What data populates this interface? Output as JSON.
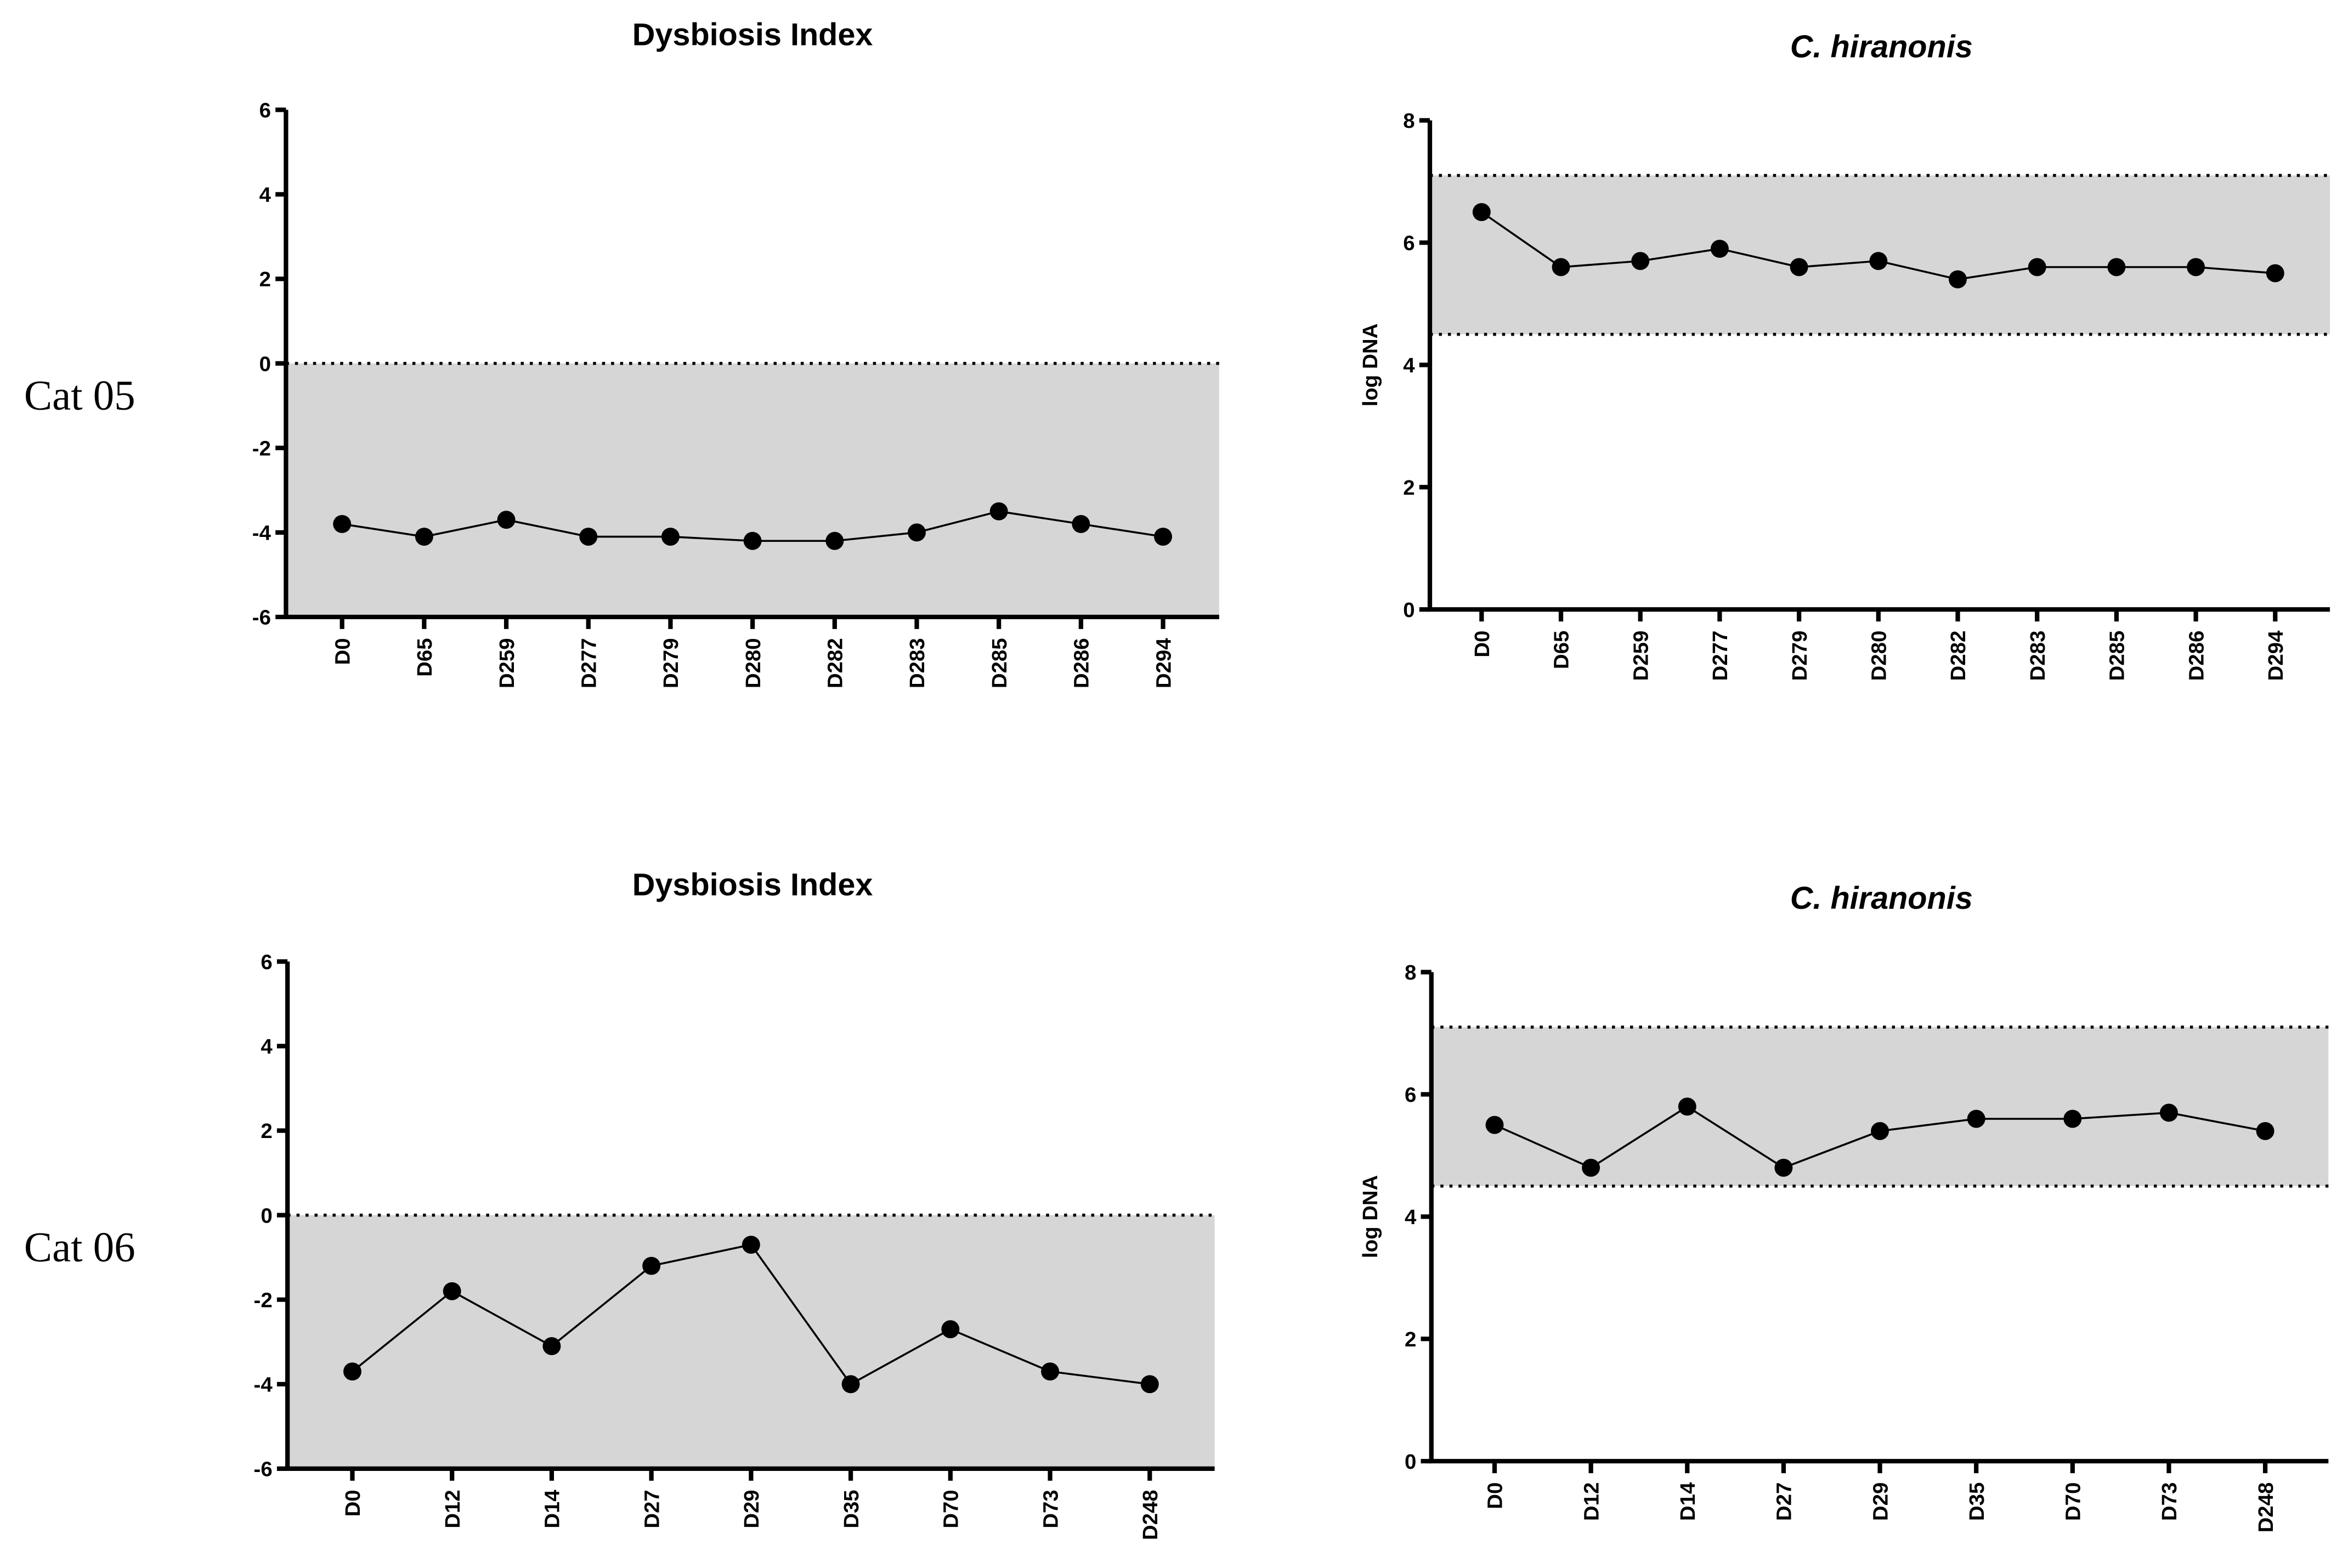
{
  "row_labels": [
    "Cat 05",
    "Cat 06"
  ],
  "chart_data": [
    {
      "type": "line",
      "title": "Dysbiosis Index",
      "title_style": "normal",
      "categories": [
        "D0",
        "D65",
        "D259",
        "D277",
        "D279",
        "D280",
        "D282",
        "D283",
        "D285",
        "D286",
        "D294"
      ],
      "values": [
        -3.8,
        -4.1,
        -3.7,
        -4.1,
        -4.1,
        -4.2,
        -4.2,
        -4.0,
        -3.5,
        -3.8,
        -4.1
      ],
      "color": "#000000",
      "band": [
        -6,
        0
      ],
      "band_color": "#d6d6d6",
      "ylim": [
        -6,
        6
      ],
      "yticks": [
        -6,
        -4,
        -2,
        0,
        2,
        4,
        6
      ]
    },
    {
      "type": "line",
      "title": "C. hiranonis",
      "title_style": "italic",
      "ylabel": "log DNA",
      "categories": [
        "D0",
        "D65",
        "D259",
        "D277",
        "D279",
        "D280",
        "D282",
        "D283",
        "D285",
        "D286",
        "D294"
      ],
      "values": [
        6.5,
        5.6,
        5.7,
        5.9,
        5.6,
        5.7,
        5.4,
        5.6,
        5.6,
        5.6,
        5.5
      ],
      "color": "#000000",
      "band": [
        4.5,
        7.1
      ],
      "band_color": "#d6d6d6",
      "ylim": [
        0,
        8
      ],
      "yticks": [
        0,
        2,
        4,
        6,
        8
      ]
    },
    {
      "type": "line",
      "title": "Dysbiosis Index",
      "title_style": "normal",
      "categories": [
        "D0",
        "D12",
        "D14",
        "D27",
        "D29",
        "D35",
        "D70",
        "D73",
        "D248"
      ],
      "values": [
        -3.7,
        -1.8,
        -3.1,
        -1.2,
        -0.7,
        -4.0,
        -2.7,
        -3.7,
        -4.0
      ],
      "color": "#000000",
      "band": [
        -6,
        0
      ],
      "band_color": "#d6d6d6",
      "ylim": [
        -6,
        6
      ],
      "yticks": [
        -6,
        -4,
        -2,
        0,
        2,
        4,
        6
      ]
    },
    {
      "type": "line",
      "title": "C. hiranonis",
      "title_style": "italic",
      "ylabel": "log DNA",
      "categories": [
        "D0",
        "D12",
        "D14",
        "D27",
        "D29",
        "D35",
        "D70",
        "D73",
        "D248"
      ],
      "values": [
        5.5,
        4.8,
        5.8,
        4.8,
        5.4,
        5.6,
        5.6,
        5.7,
        5.4
      ],
      "color": "#000000",
      "band": [
        4.5,
        7.1
      ],
      "band_color": "#d6d6d6",
      "ylim": [
        0,
        8
      ],
      "yticks": [
        0,
        2,
        4,
        6,
        8
      ]
    }
  ]
}
